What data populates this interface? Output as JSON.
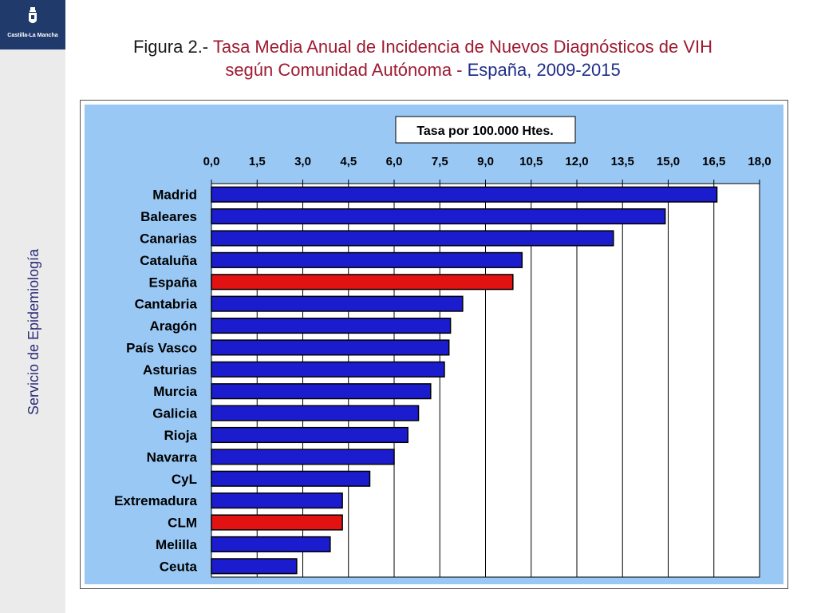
{
  "logo": {
    "text": "Castilla-La Mancha",
    "icon": "coat-of-arms-icon"
  },
  "sidebar": {
    "label": "Servicio de Epidemiología"
  },
  "title": {
    "prefix": "Figura 2.- ",
    "line1_rest": "Tasa Media Anual de Incidencia de Nuevos Diagnósticos de VIH",
    "line2_part1": "según Comunidad Autónoma - ",
    "line2_part2": "España, 2009-2015"
  },
  "colors": {
    "bar": "#1c1ccf",
    "highlight": "#e31212",
    "plot_bg": "#ffffff",
    "frame_bg": "#99c8f5",
    "title_dark": "#1a1a1a",
    "title_red": "#9e1b32",
    "title_blue": "#1f2f8a"
  },
  "chart_data": {
    "type": "bar",
    "orientation": "horizontal",
    "title": "Tasa por 100.000 Htes.",
    "xlim": [
      0,
      18
    ],
    "x_ticks": [
      "0,0",
      "1,5",
      "3,0",
      "4,5",
      "6,0",
      "7,5",
      "9,0",
      "10,5",
      "12,0",
      "13,5",
      "15,0",
      "16,5",
      "18,0"
    ],
    "x_axis_position": "top",
    "grid": true,
    "categories": [
      "Madrid",
      "Baleares",
      "Canarias",
      "Cataluña",
      "España",
      "Cantabria",
      "Aragón",
      "País Vasco",
      "Asturias",
      "Murcia",
      "Galicia",
      "Rioja",
      "Navarra",
      "CyL",
      "Extremadura",
      "CLM",
      "Melilla",
      "Ceuta"
    ],
    "values": [
      16.6,
      14.9,
      13.2,
      10.2,
      9.9,
      8.25,
      7.85,
      7.8,
      7.65,
      7.2,
      6.8,
      6.45,
      6.0,
      5.2,
      4.3,
      4.3,
      3.9,
      2.8
    ],
    "highlighted": [
      "España",
      "CLM"
    ]
  }
}
